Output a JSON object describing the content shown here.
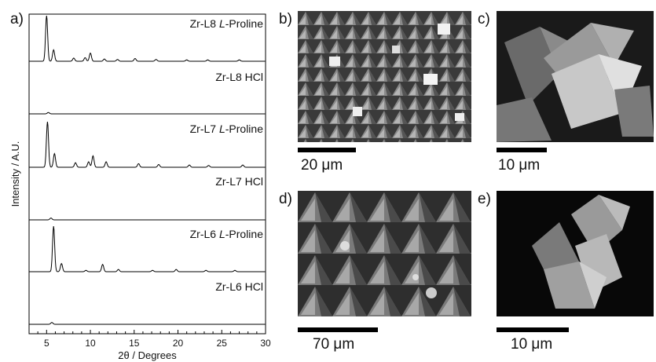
{
  "panels": {
    "a": "a)",
    "b": "b)",
    "c": "c)",
    "d": "d)",
    "e": "e)"
  },
  "chart_data": {
    "type": "line",
    "xlabel": "2θ / Degrees",
    "ylabel": "Intensity / A.U.",
    "xlim": [
      3,
      30
    ],
    "xticks": [
      5,
      10,
      15,
      20,
      25,
      30
    ],
    "grid": false,
    "series": [
      {
        "name": "Zr-L8 L-Proline",
        "italic_prefix": "Zr-L8 ",
        "italic": "L",
        "suffix": "-Proline",
        "peaks": [
          [
            5.0,
            1.0
          ],
          [
            5.8,
            0.25
          ],
          [
            8.1,
            0.07
          ],
          [
            9.4,
            0.08
          ],
          [
            10.0,
            0.18
          ],
          [
            11.6,
            0.05
          ],
          [
            13.1,
            0.04
          ],
          [
            15.1,
            0.06
          ],
          [
            17.5,
            0.04
          ],
          [
            21.0,
            0.03
          ],
          [
            23.4,
            0.03
          ],
          [
            27.0,
            0.03
          ]
        ]
      },
      {
        "name": "Zr-L8 HCl",
        "peaks": [
          [
            5.2,
            0.03
          ]
        ]
      },
      {
        "name": "Zr-L7 L-Proline",
        "italic_prefix": "Zr-L7 ",
        "italic": "L",
        "suffix": "-Proline",
        "peaks": [
          [
            5.1,
            1.0
          ],
          [
            5.9,
            0.3
          ],
          [
            8.3,
            0.1
          ],
          [
            9.8,
            0.12
          ],
          [
            10.3,
            0.25
          ],
          [
            11.8,
            0.12
          ],
          [
            15.5,
            0.08
          ],
          [
            17.8,
            0.06
          ],
          [
            21.3,
            0.05
          ],
          [
            23.5,
            0.04
          ],
          [
            27.4,
            0.05
          ]
        ]
      },
      {
        "name": "Zr-L7 HCl",
        "peaks": [
          [
            5.5,
            0.04
          ]
        ]
      },
      {
        "name": "Zr-L6 L-Proline",
        "italic_prefix": "Zr-L6 ",
        "italic": "L",
        "suffix": "-Proline",
        "peaks": [
          [
            5.8,
            1.0
          ],
          [
            6.7,
            0.18
          ],
          [
            9.5,
            0.03
          ],
          [
            11.4,
            0.16
          ],
          [
            13.2,
            0.05
          ],
          [
            17.1,
            0.03
          ],
          [
            19.8,
            0.05
          ],
          [
            23.2,
            0.03
          ],
          [
            26.5,
            0.03
          ]
        ]
      },
      {
        "name": "Zr-L6 HCl",
        "peaks": [
          [
            5.6,
            0.04
          ]
        ]
      }
    ]
  },
  "micrographs": {
    "b": {
      "scale": "20 μm"
    },
    "c": {
      "scale": "10 μm"
    },
    "d": {
      "scale": "70 μm"
    },
    "e": {
      "scale": "10 μm"
    }
  }
}
